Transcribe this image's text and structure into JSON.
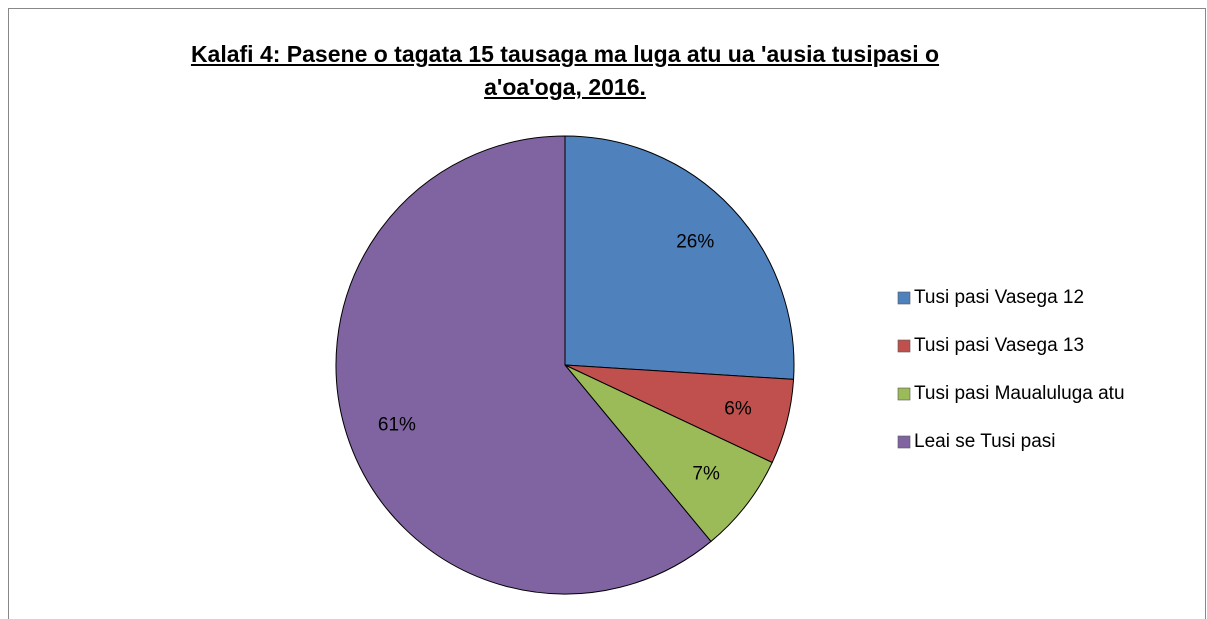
{
  "chart_data": {
    "type": "pie",
    "title": "Kalafi 4: Pasene o tagata 15 tausaga ma luga atu ua 'ausia tusipasi o a'oa'oga, 2016.",
    "categories": [
      "Tusi pasi Vasega 12",
      "Tusi pasi Vasega 13",
      "Tusi pasi Maualuluga atu",
      "Leai se Tusi pasi"
    ],
    "values": [
      26,
      6,
      7,
      61
    ],
    "value_labels": [
      "26%",
      "6%",
      "7%",
      "61%"
    ],
    "colors": [
      "#4f81bd",
      "#c0504d",
      "#9bbb59",
      "#8064a2"
    ],
    "legend": "right"
  }
}
